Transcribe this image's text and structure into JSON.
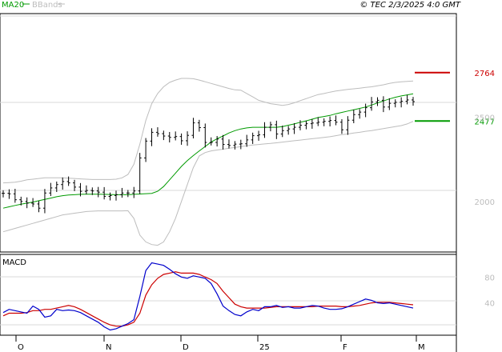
{
  "header": {
    "ma_label": "MA20",
    "bb_label": "BBands",
    "timestamp": "© TEC 2/3/2025 4:0 GMT"
  },
  "colors": {
    "ma": "#009a00",
    "bbands": "#bdbdbd",
    "price": "#000000",
    "macd": "#0000cc",
    "signal": "#cc0000",
    "resistance": "#cc0000",
    "support": "#009a00",
    "grid": "#d9d9d9"
  },
  "chart_data": [
    {
      "type": "line",
      "panel": "price",
      "title": "",
      "x_ticks": [
        "O",
        "N",
        "D",
        "25",
        "F",
        "M"
      ],
      "y_ticks": [
        "2000",
        "2500"
      ],
      "ylim": [
        1700,
        3100
      ],
      "levels": [
        {
          "label": "2764",
          "value": 2764,
          "kind": "resistance"
        },
        {
          "label": "2477",
          "value": 2477,
          "kind": "support"
        }
      ],
      "series": [
        {
          "name": "MA20",
          "values": [
            1960,
            1968,
            1976,
            1984,
            1990,
            1996,
            2004,
            2012,
            2020,
            2028,
            2034,
            2038,
            2040,
            2042,
            2043,
            2043,
            2043,
            2042,
            2041,
            2040,
            2040,
            2040,
            2042,
            2044,
            2046,
            2048,
            2060,
            2088,
            2128,
            2168,
            2208,
            2242,
            2272,
            2300,
            2326,
            2352,
            2372,
            2388,
            2406,
            2420,
            2430,
            2436,
            2440,
            2440,
            2440,
            2440,
            2440,
            2444,
            2452,
            2460,
            2470,
            2478,
            2488,
            2498,
            2504,
            2510,
            2520,
            2528,
            2536,
            2544,
            2552,
            2560,
            2572,
            2584,
            2596,
            2608,
            2618,
            2626,
            2632,
            2638
          ]
        },
        {
          "name": "BB Upper",
          "values": [
            2110,
            2112,
            2114,
            2120,
            2128,
            2132,
            2136,
            2140,
            2140,
            2140,
            2140,
            2138,
            2136,
            2134,
            2132,
            2130,
            2130,
            2130,
            2130,
            2132,
            2140,
            2160,
            2220,
            2340,
            2480,
            2580,
            2640,
            2680,
            2706,
            2720,
            2730,
            2730,
            2728,
            2720,
            2710,
            2700,
            2690,
            2680,
            2670,
            2662,
            2660,
            2640,
            2620,
            2600,
            2590,
            2580,
            2575,
            2570,
            2575,
            2585,
            2598,
            2610,
            2622,
            2634,
            2640,
            2648,
            2655,
            2660,
            2665,
            2668,
            2672,
            2676,
            2680,
            2686,
            2692,
            2700,
            2706,
            2710,
            2712,
            2714
          ]
        },
        {
          "name": "BB Lower",
          "values": [
            1820,
            1830,
            1840,
            1850,
            1860,
            1870,
            1880,
            1890,
            1900,
            1910,
            1920,
            1925,
            1930,
            1935,
            1940,
            1942,
            1944,
            1944,
            1944,
            1944,
            1944,
            1945,
            1900,
            1800,
            1760,
            1744,
            1740,
            1760,
            1820,
            1900,
            2000,
            2100,
            2200,
            2270,
            2290,
            2300,
            2305,
            2310,
            2316,
            2320,
            2325,
            2330,
            2335,
            2338,
            2341,
            2344,
            2348,
            2352,
            2356,
            2360,
            2364,
            2368,
            2372,
            2376,
            2380,
            2384,
            2390,
            2396,
            2400,
            2406,
            2410,
            2416,
            2420,
            2426,
            2432,
            2438,
            2444,
            2450,
            2460,
            2475
          ]
        },
        {
          "name": "Close",
          "values": [
            2048,
            2045,
            2010,
            2000,
            1990,
            1985,
            1960,
            2050,
            2080,
            2100,
            2118,
            2110,
            2085,
            2060,
            2065,
            2062,
            2055,
            2030,
            2035,
            2040,
            2050,
            2050,
            2062,
            2258,
            2358,
            2410,
            2402,
            2388,
            2380,
            2385,
            2360,
            2392,
            2466,
            2438,
            2350,
            2350,
            2370,
            2338,
            2332,
            2340,
            2342,
            2365,
            2390,
            2395,
            2440,
            2455,
            2400,
            2420,
            2430,
            2440,
            2452,
            2461,
            2465,
            2470,
            2475,
            2480,
            2470,
            2425,
            2482,
            2515,
            2530,
            2556,
            2590,
            2600,
            2560,
            2582,
            2588,
            2594,
            2602,
            2592
          ]
        }
      ]
    },
    {
      "type": "line",
      "panel": "indicator",
      "title": "MACD",
      "y_ticks": [
        "40",
        "80"
      ],
      "ylim": [
        -10,
        115
      ],
      "series": [
        {
          "name": "MACD",
          "values": [
            25,
            30,
            28,
            26,
            24,
            35,
            30,
            18,
            20,
            30,
            28,
            29,
            28,
            25,
            20,
            15,
            10,
            3,
            -2,
            0,
            4,
            8,
            14,
            50,
            90,
            102,
            100,
            98,
            92,
            85,
            80,
            78,
            82,
            80,
            78,
            70,
            54,
            35,
            28,
            22,
            20,
            26,
            30,
            28,
            34,
            34,
            36,
            33,
            34,
            32,
            32,
            34,
            36,
            35,
            32,
            30,
            30,
            31,
            34,
            38,
            42,
            46,
            44,
            40,
            39,
            40,
            38,
            36,
            34,
            32
          ]
        },
        {
          "name": "Signal",
          "values": [
            20,
            24,
            24,
            24,
            25,
            28,
            28,
            30,
            30,
            32,
            34,
            36,
            34,
            30,
            25,
            20,
            15,
            10,
            6,
            4,
            4,
            6,
            10,
            24,
            52,
            68,
            78,
            84,
            86,
            88,
            86,
            86,
            86,
            84,
            80,
            76,
            70,
            58,
            48,
            38,
            34,
            32,
            32,
            32,
            32,
            33,
            34,
            34,
            34,
            34,
            34,
            34,
            34,
            35,
            35,
            35,
            35,
            34,
            34,
            35,
            36,
            38,
            40,
            41,
            41,
            41,
            40,
            39,
            38,
            37
          ]
        }
      ]
    }
  ]
}
